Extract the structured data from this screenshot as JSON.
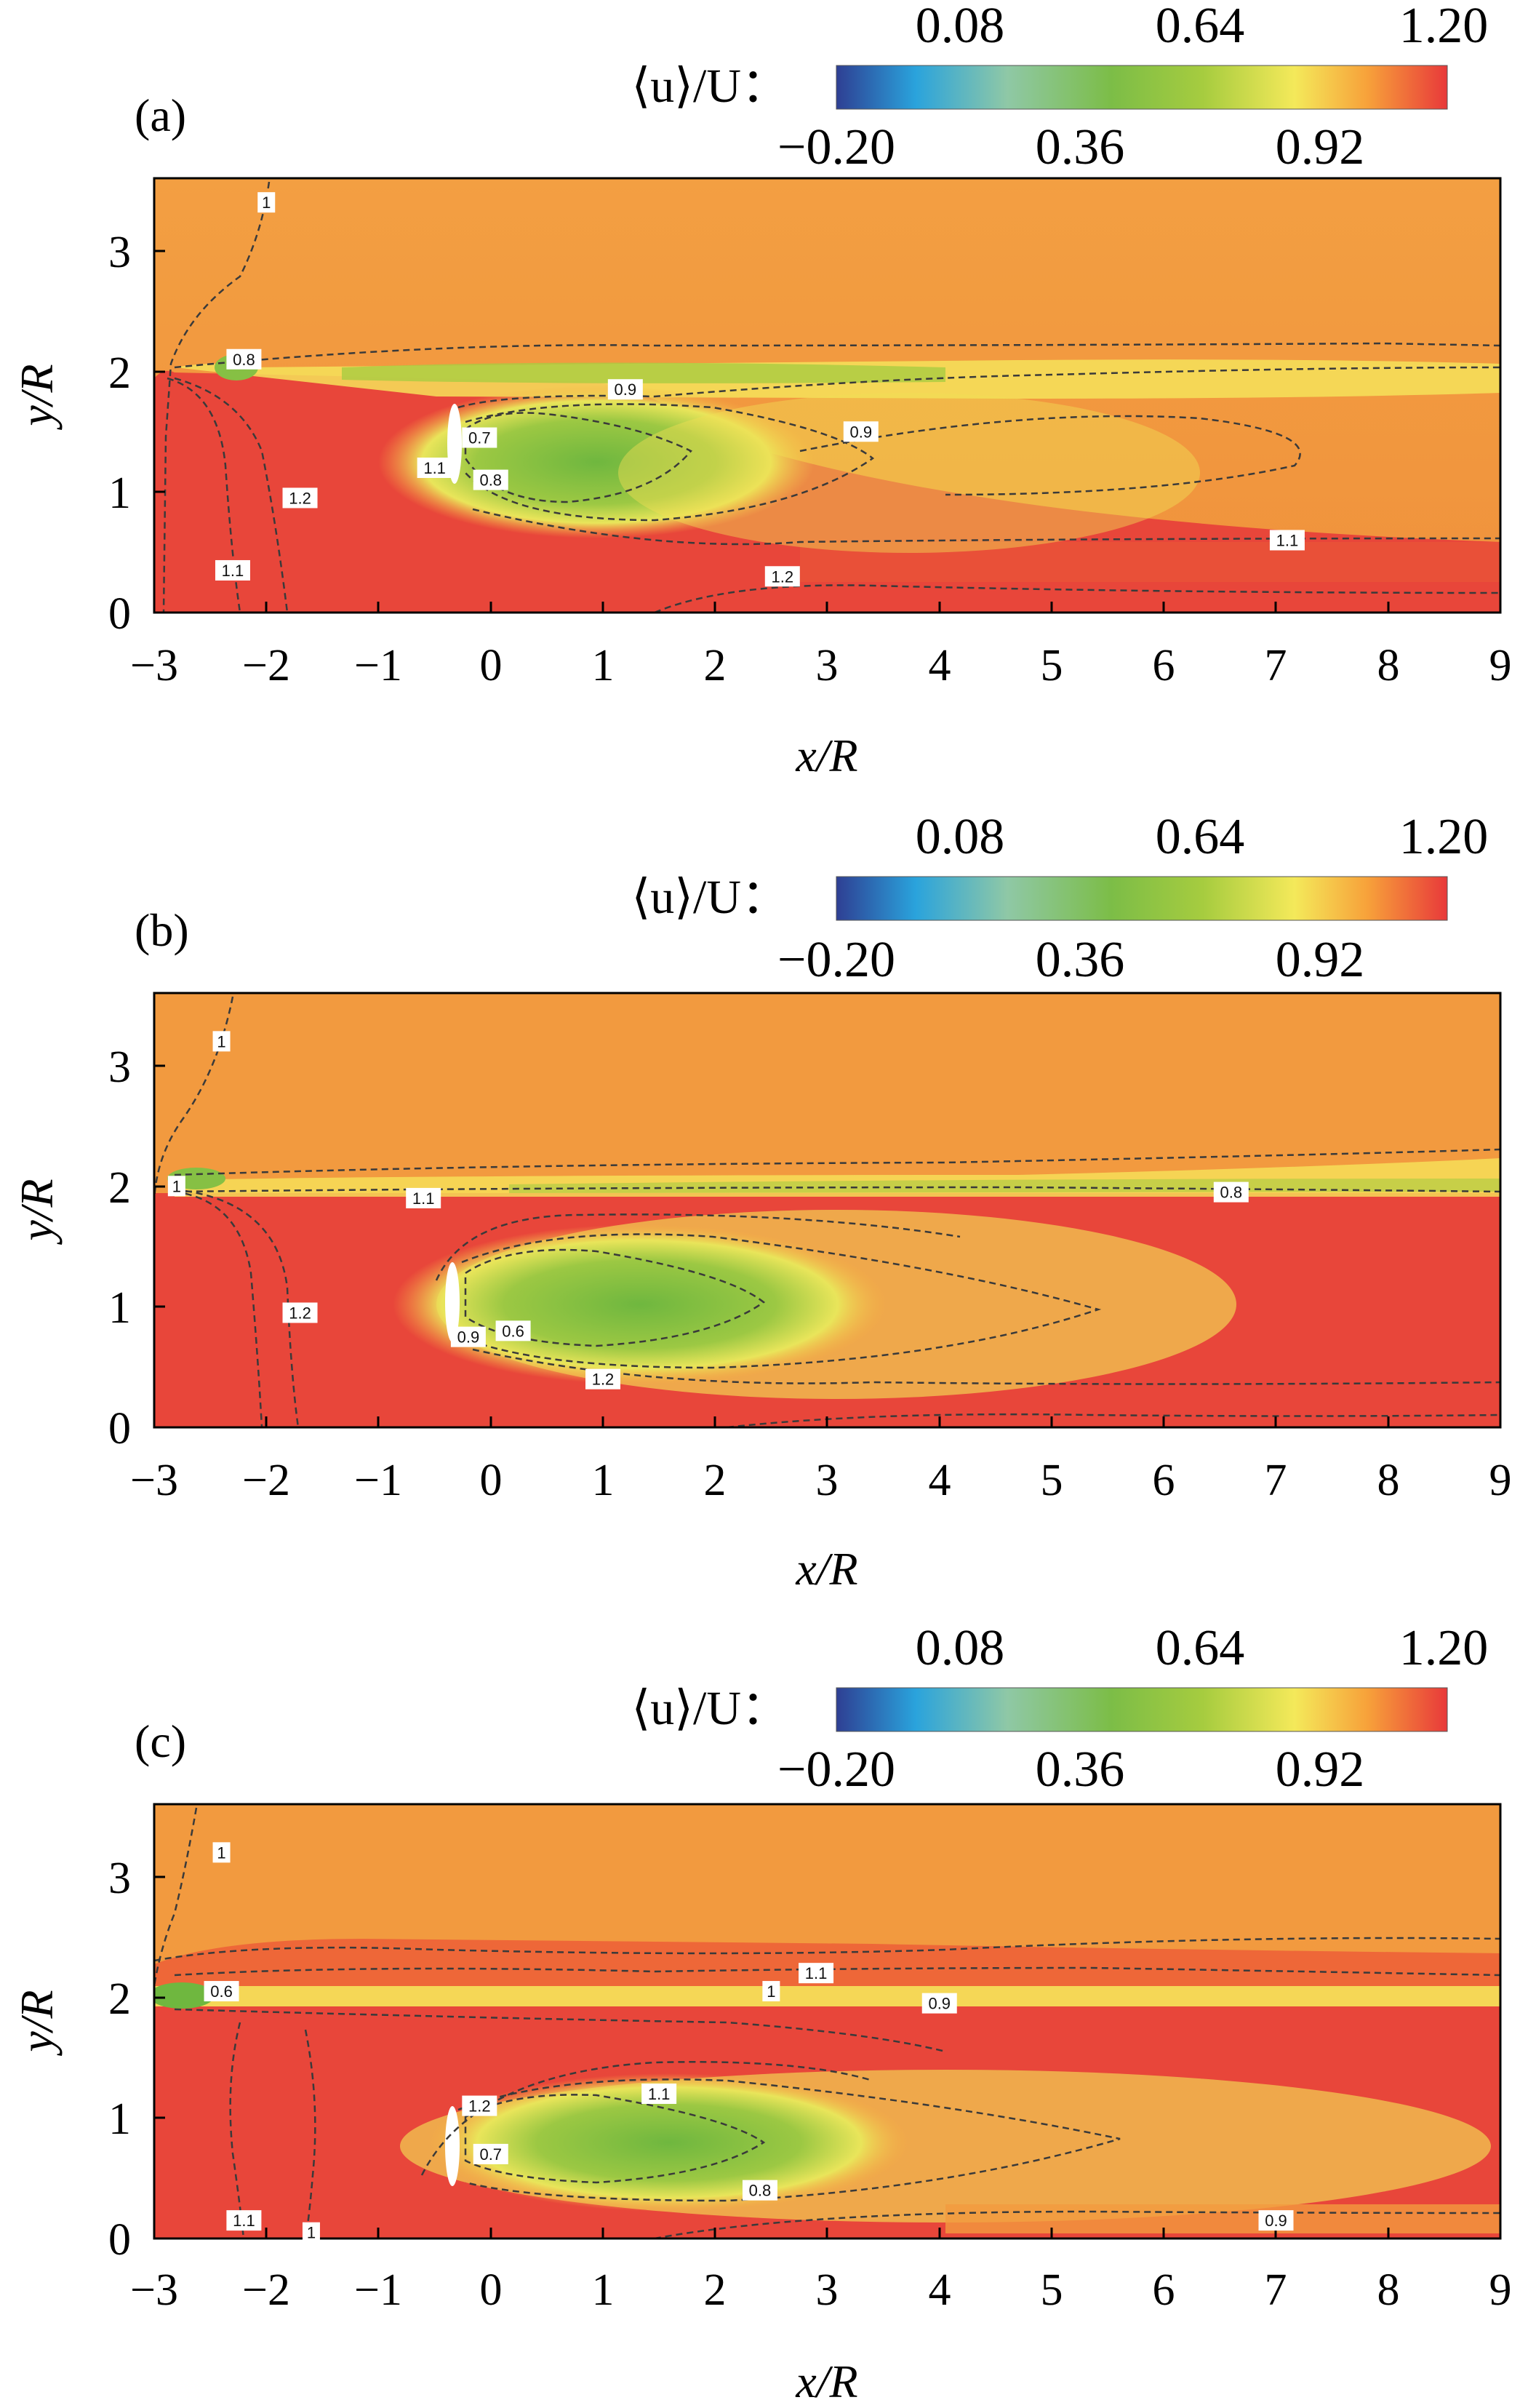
{
  "colorbar": {
    "title": "⟨u⟩/U：",
    "ticks_top": [
      "0.08",
      "0.64",
      "1.20"
    ],
    "ticks_bottom": [
      "−0.20",
      "0.36",
      "0.92"
    ],
    "range": [
      -0.2,
      1.2
    ],
    "colors": [
      "#2e3f93",
      "#2aa3dc",
      "#8fc8a6",
      "#7cbd47",
      "#6db53d",
      "#a6cc3f",
      "#f4e95a",
      "#f7a13a",
      "#ef4a31",
      "#e8393a"
    ]
  },
  "axes": {
    "xlabel": "x/R",
    "ylabel": "y/R",
    "xticks": [
      "−3",
      "−2",
      "−1",
      "0",
      "1",
      "2",
      "3",
      "4",
      "5",
      "6",
      "7",
      "8",
      "9"
    ],
    "yticks": [
      "0",
      "1",
      "2",
      "3"
    ],
    "xlim": [
      -3,
      9
    ],
    "ylim": [
      0,
      3.6
    ]
  },
  "colors": {
    "freestream": "#f29a3f",
    "high": "#e8463a",
    "wake": "#7cbd47",
    "shear": "#f4e95a"
  },
  "chart_data": [
    {
      "type": "heatmap",
      "panel_label": "(a)",
      "contour_labels": [
        {
          "text": "1",
          "x": -2.0,
          "y": 3.4
        },
        {
          "text": "0.8",
          "x": -2.2,
          "y": 2.1
        },
        {
          "text": "0.9",
          "x": 1.2,
          "y": 1.85
        },
        {
          "text": "1.1",
          "x": -0.5,
          "y": 1.2
        },
        {
          "text": "0.7",
          "x": -0.1,
          "y": 1.45
        },
        {
          "text": "0.8",
          "x": 0.0,
          "y": 1.1
        },
        {
          "text": "0.9",
          "x": 3.3,
          "y": 1.5
        },
        {
          "text": "1.2",
          "x": -1.7,
          "y": 0.95
        },
        {
          "text": "1.1",
          "x": -2.3,
          "y": 0.35
        },
        {
          "text": "1.2",
          "x": 2.6,
          "y": 0.3
        },
        {
          "text": "1.1",
          "x": 7.1,
          "y": 0.6
        }
      ]
    },
    {
      "type": "heatmap",
      "panel_label": "(b)",
      "contour_labels": [
        {
          "text": "1",
          "x": -2.4,
          "y": 3.2
        },
        {
          "text": "1",
          "x": -2.8,
          "y": 2.0
        },
        {
          "text": "1.1",
          "x": -0.6,
          "y": 1.9
        },
        {
          "text": "0.8",
          "x": 6.6,
          "y": 1.95
        },
        {
          "text": "1.2",
          "x": -1.7,
          "y": 0.95
        },
        {
          "text": "0.9",
          "x": -0.2,
          "y": 0.75
        },
        {
          "text": "0.6",
          "x": 0.2,
          "y": 0.8
        },
        {
          "text": "1.2",
          "x": 1.0,
          "y": 0.4
        }
      ]
    },
    {
      "type": "heatmap",
      "panel_label": "(c)",
      "contour_labels": [
        {
          "text": "1",
          "x": -2.4,
          "y": 3.2
        },
        {
          "text": "0.6",
          "x": -2.4,
          "y": 2.05
        },
        {
          "text": "1",
          "x": 2.5,
          "y": 2.05
        },
        {
          "text": "1.1",
          "x": 2.9,
          "y": 2.2
        },
        {
          "text": "0.9",
          "x": 4.0,
          "y": 1.95
        },
        {
          "text": "1.1",
          "x": 1.5,
          "y": 1.2
        },
        {
          "text": "1.2",
          "x": -0.1,
          "y": 1.1
        },
        {
          "text": "0.7",
          "x": 0.0,
          "y": 0.7
        },
        {
          "text": "0.8",
          "x": 2.4,
          "y": 0.4
        },
        {
          "text": "1.1",
          "x": -2.2,
          "y": 0.15
        },
        {
          "text": "1",
          "x": -1.6,
          "y": 0.05
        },
        {
          "text": "0.9",
          "x": 7.0,
          "y": 0.15
        }
      ]
    }
  ]
}
